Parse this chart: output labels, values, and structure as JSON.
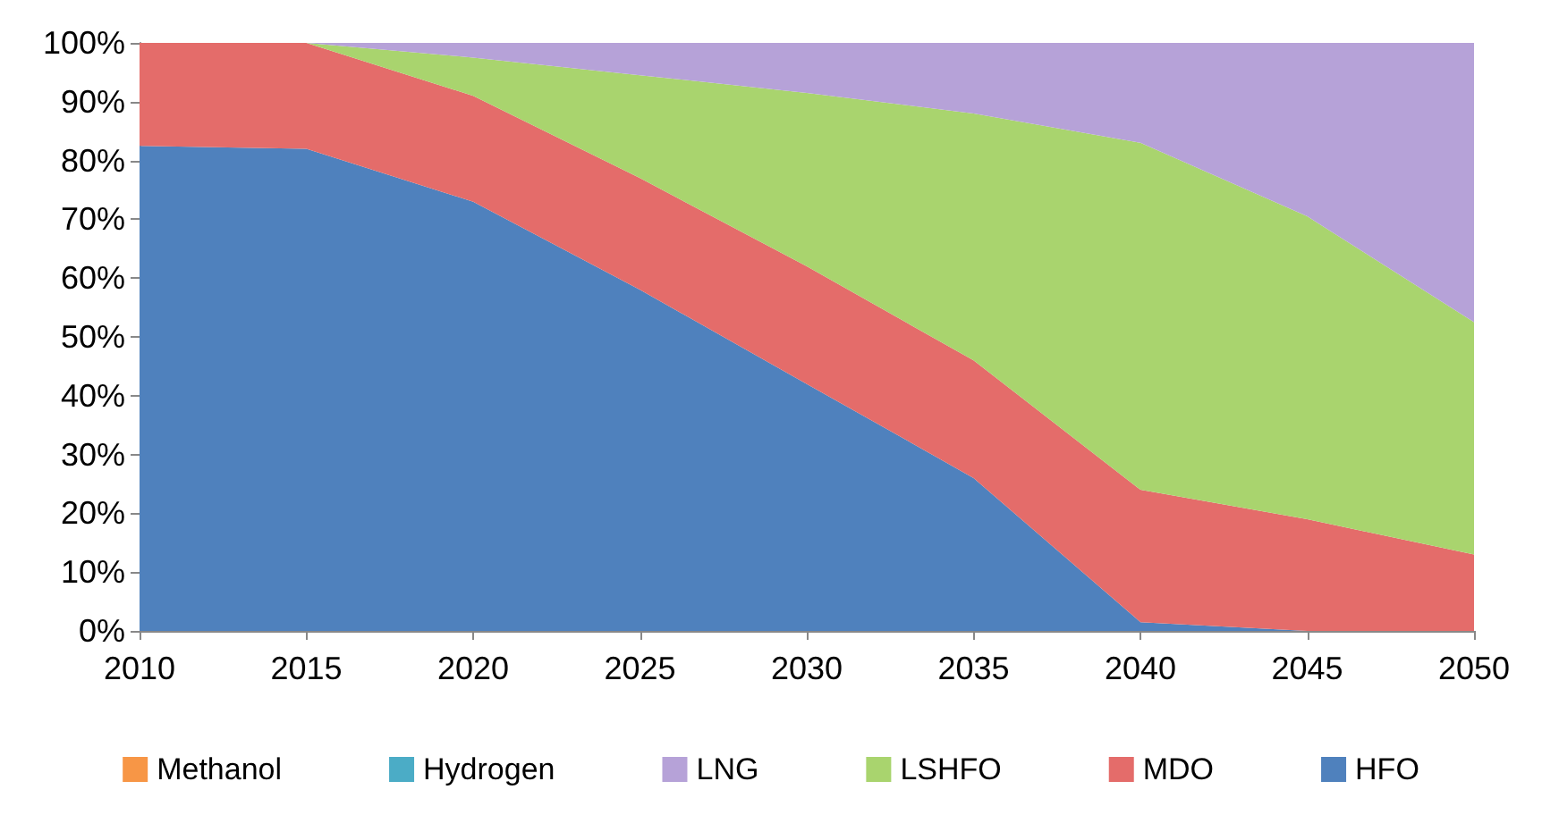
{
  "chart_data": {
    "type": "area",
    "stacked": true,
    "categories": [
      "2010",
      "2015",
      "2020",
      "2025",
      "2030",
      "2035",
      "2040",
      "2045",
      "2050"
    ],
    "ylim": [
      0,
      100
    ],
    "yticks": [
      {
        "value": 0,
        "label": "0%"
      },
      {
        "value": 10,
        "label": "10%"
      },
      {
        "value": 20,
        "label": "20%"
      },
      {
        "value": 30,
        "label": "30%"
      },
      {
        "value": 40,
        "label": "40%"
      },
      {
        "value": 50,
        "label": "50%"
      },
      {
        "value": 60,
        "label": "60%"
      },
      {
        "value": 70,
        "label": "70%"
      },
      {
        "value": 80,
        "label": "80%"
      },
      {
        "value": 90,
        "label": "90%"
      },
      {
        "value": 100,
        "label": "100%"
      }
    ],
    "grid": false,
    "legend": "bottom",
    "series": [
      {
        "name": "HFO",
        "color": "#4f81bd",
        "values": [
          82.5,
          82,
          73,
          58,
          42,
          26,
          1.5,
          0,
          0
        ]
      },
      {
        "name": "MDO",
        "color": "#e46c6a",
        "values": [
          17.5,
          18,
          18,
          19,
          20,
          20,
          22.5,
          19,
          13
        ]
      },
      {
        "name": "LSHFO",
        "color": "#a9d46e",
        "values": [
          0,
          0,
          6.5,
          17.5,
          29.5,
          42,
          59,
          51.5,
          39.5
        ]
      },
      {
        "name": "LNG",
        "color": "#b6a2d8",
        "values": [
          0,
          0,
          2.5,
          5.5,
          8.5,
          12,
          17,
          29.5,
          47.5
        ]
      },
      {
        "name": "Hydrogen",
        "color": "#4bacc6",
        "values": [
          null,
          null,
          null,
          null,
          null,
          null,
          null,
          null,
          null
        ]
      },
      {
        "name": "Methanol",
        "color": "#f79646",
        "values": [
          null,
          null,
          null,
          null,
          null,
          null,
          null,
          null,
          null
        ]
      }
    ]
  }
}
